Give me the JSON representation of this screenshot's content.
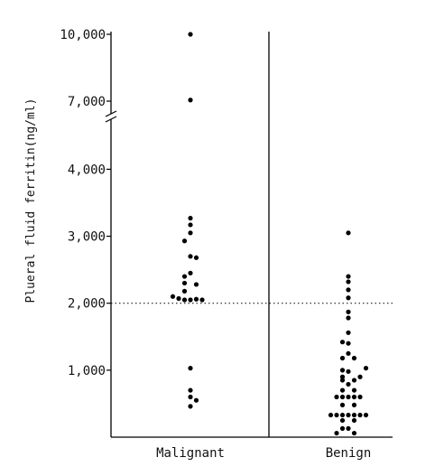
{
  "chart_data": {
    "type": "scatter",
    "title": "",
    "ylabel": "Plueral fluid ferritin(ng/ml)",
    "xlabel": "",
    "categories": [
      "Malignant",
      "Benign"
    ],
    "y_ticks": [
      {
        "value": 1000,
        "label": "1,000"
      },
      {
        "value": 2000,
        "label": "2,000"
      },
      {
        "value": 3000,
        "label": "3,000"
      },
      {
        "value": 4000,
        "label": "4,000"
      },
      {
        "value": 7000,
        "label": "7,000"
      },
      {
        "value": 10000,
        "label": "10,000"
      }
    ],
    "axis_break": {
      "lower_max": 4700,
      "upper_min": 6000
    },
    "reference_line": {
      "value": 2000
    },
    "series": [
      {
        "category": "Malignant",
        "points": [
          {
            "x_offset": 0,
            "y": 10000
          },
          {
            "x_offset": 0,
            "y": 7050
          },
          {
            "x_offset": 0,
            "y": 3270
          },
          {
            "x_offset": 0,
            "y": 3170
          },
          {
            "x_offset": 0,
            "y": 3050
          },
          {
            "x_offset": -1,
            "y": 2930
          },
          {
            "x_offset": 0,
            "y": 2700
          },
          {
            "x_offset": 1,
            "y": 2680
          },
          {
            "x_offset": 0,
            "y": 2450
          },
          {
            "x_offset": -1,
            "y": 2400
          },
          {
            "x_offset": -1,
            "y": 2300
          },
          {
            "x_offset": 1,
            "y": 2280
          },
          {
            "x_offset": -1,
            "y": 2180
          },
          {
            "x_offset": -3,
            "y": 2100
          },
          {
            "x_offset": -2,
            "y": 2070
          },
          {
            "x_offset": -1,
            "y": 2050
          },
          {
            "x_offset": 0,
            "y": 2050
          },
          {
            "x_offset": 1,
            "y": 2060
          },
          {
            "x_offset": 2,
            "y": 2050
          },
          {
            "x_offset": 0,
            "y": 1030
          },
          {
            "x_offset": 0,
            "y": 700
          },
          {
            "x_offset": 0,
            "y": 600
          },
          {
            "x_offset": 1,
            "y": 550
          },
          {
            "x_offset": 0,
            "y": 460
          }
        ]
      },
      {
        "category": "Benign",
        "points": [
          {
            "x_offset": 0,
            "y": 3050
          },
          {
            "x_offset": 0,
            "y": 2400
          },
          {
            "x_offset": 0,
            "y": 2320
          },
          {
            "x_offset": 0,
            "y": 2200
          },
          {
            "x_offset": 0,
            "y": 2080
          },
          {
            "x_offset": 0,
            "y": 1870
          },
          {
            "x_offset": 0,
            "y": 1780
          },
          {
            "x_offset": 0,
            "y": 1560
          },
          {
            "x_offset": -1,
            "y": 1420
          },
          {
            "x_offset": 0,
            "y": 1400
          },
          {
            "x_offset": 0,
            "y": 1250
          },
          {
            "x_offset": -1,
            "y": 1180
          },
          {
            "x_offset": 1,
            "y": 1180
          },
          {
            "x_offset": 3,
            "y": 1030
          },
          {
            "x_offset": -1,
            "y": 1000
          },
          {
            "x_offset": 0,
            "y": 980
          },
          {
            "x_offset": 2,
            "y": 900
          },
          {
            "x_offset": -1,
            "y": 900
          },
          {
            "x_offset": 1,
            "y": 850
          },
          {
            "x_offset": -1,
            "y": 850
          },
          {
            "x_offset": 0,
            "y": 790
          },
          {
            "x_offset": -1,
            "y": 700
          },
          {
            "x_offset": 1,
            "y": 700
          },
          {
            "x_offset": -2,
            "y": 600
          },
          {
            "x_offset": -1,
            "y": 600
          },
          {
            "x_offset": 0,
            "y": 600
          },
          {
            "x_offset": 1,
            "y": 600
          },
          {
            "x_offset": 2,
            "y": 600
          },
          {
            "x_offset": -1,
            "y": 480
          },
          {
            "x_offset": 1,
            "y": 480
          },
          {
            "x_offset": -3,
            "y": 330
          },
          {
            "x_offset": -2,
            "y": 330
          },
          {
            "x_offset": -1,
            "y": 330
          },
          {
            "x_offset": 0,
            "y": 330
          },
          {
            "x_offset": 1,
            "y": 330
          },
          {
            "x_offset": 2,
            "y": 330
          },
          {
            "x_offset": 3,
            "y": 330
          },
          {
            "x_offset": -1,
            "y": 250
          },
          {
            "x_offset": 1,
            "y": 250
          },
          {
            "x_offset": -1,
            "y": 130
          },
          {
            "x_offset": 0,
            "y": 130
          },
          {
            "x_offset": -2,
            "y": 60
          },
          {
            "x_offset": 1,
            "y": 60
          }
        ]
      }
    ]
  }
}
